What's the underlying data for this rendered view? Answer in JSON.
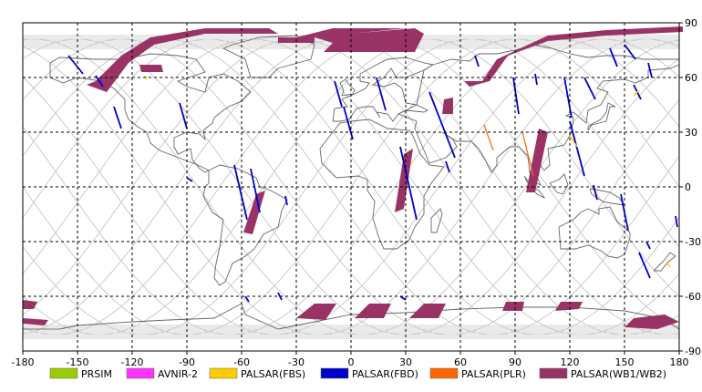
{
  "map": {
    "x_ticks": [
      "-180",
      "-150",
      "-120",
      "-90",
      "-60",
      "-30",
      "0",
      "30",
      "60",
      "90",
      "120",
      "150",
      "180"
    ],
    "y_ticks": [
      "90",
      "60",
      "30",
      "0",
      "-30",
      "-60",
      "-90"
    ]
  },
  "legend": [
    {
      "label": "PRSIM",
      "color": "#99cc00"
    },
    {
      "label": "AVNIR-2",
      "color": "#ff33ff"
    },
    {
      "label": "PALSAR(FBS)",
      "color": "#ffcc00"
    },
    {
      "label": "PALSAR(FBD)",
      "color": "#0000cc"
    },
    {
      "label": "PALSAR(PLR)",
      "color": "#ff6600"
    },
    {
      "label": "PALSAR(WB1/WB2)",
      "color": "#993366"
    }
  ],
  "colors": {
    "orbit": "#c8c8c8",
    "coast": "#666666",
    "grid": "#000000"
  }
}
